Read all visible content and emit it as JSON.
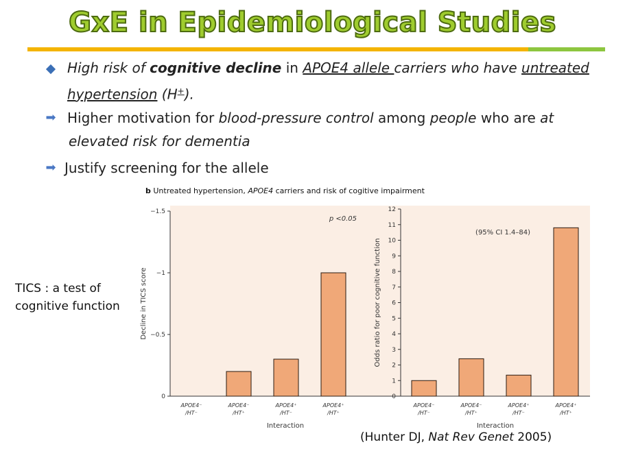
{
  "slide": {
    "title": "GxE in Epidemiological Studies",
    "bullets": [
      {
        "marker": "diamond",
        "runs": [
          {
            "t": "High risk of ",
            "s": "i"
          },
          {
            "t": "cognitive decline",
            "s": "bi"
          },
          {
            "t": " in ",
            "s": ""
          },
          {
            "t": "APOE4 allele ",
            "s": "iu"
          },
          {
            "t": "carriers who have ",
            "s": "i"
          },
          {
            "t": "untreated",
            "s": "iu"
          }
        ],
        "line2": [
          {
            "t": "hypertension",
            "s": "iu"
          },
          {
            "t": " (H",
            "s": "i"
          },
          {
            "t": "+",
            "s": "sup"
          },
          {
            "t": ").",
            "s": "i"
          }
        ]
      },
      {
        "marker": "arrow",
        "runs": [
          {
            "t": "Higher motivation for ",
            "s": ""
          },
          {
            "t": "blood-pressure control",
            "s": "i"
          },
          {
            "t": " among ",
            "s": ""
          },
          {
            "t": "people",
            "s": "i"
          },
          {
            "t": " who are ",
            "s": ""
          },
          {
            "t": "at",
            "s": "i"
          }
        ],
        "line2": [
          {
            "t": "elevated risk for dementia",
            "s": "i"
          }
        ]
      },
      {
        "marker": "arrow",
        "runs": [
          {
            "t": "Justify screening for the allele",
            "s": ""
          }
        ],
        "line2": []
      }
    ],
    "panel_label": "b",
    "panel_title_a": " Untreated hypertension, ",
    "panel_title_b": "APOE4",
    "panel_title_c": " carriers and risk of cogitive impairment",
    "side_note_1": "TICS : a test of",
    "side_note_2": "cognitive function",
    "citation_a": "(Hunter DJ,  ",
    "citation_b": "Nat Rev Genet",
    "citation_c": " 2005)",
    "arrow_glyph": "➡"
  },
  "colors": {
    "bar_fill": "#f0a878",
    "bar_stroke": "#2a1a10",
    "panel_bg": "#fbeee4",
    "title_green": "#9fcc2e"
  },
  "chart_data": [
    {
      "type": "bar",
      "categories": [
        [
          "APOE4⁻",
          "/HT⁻"
        ],
        [
          "APOE4⁻",
          "/HT⁺"
        ],
        [
          "APOE4⁺",
          "/HT⁻"
        ],
        [
          "APOE4⁺",
          "/HT⁺"
        ]
      ],
      "values": [
        0,
        -0.2,
        -0.3,
        -1.0
      ],
      "ylim": [
        0,
        -1.5
      ],
      "yticks": [
        0,
        -0.5,
        -1,
        -1.5
      ],
      "ytick_labels": [
        "0",
        "−0.5",
        "−1",
        "−1.5"
      ],
      "xlabel": "Interaction",
      "ylabel": "Decline in TICS score",
      "annotation": "p <0.05",
      "grid": false
    },
    {
      "type": "bar",
      "categories": [
        [
          "APOE4⁻",
          "/HT⁻"
        ],
        [
          "APOE4⁻",
          "/HT⁺"
        ],
        [
          "APOE4⁺",
          "/HT⁻"
        ],
        [
          "APOE4⁺",
          "/HT⁺"
        ]
      ],
      "values": [
        1.0,
        2.4,
        1.35,
        10.8
      ],
      "ylim": [
        0,
        12
      ],
      "yticks": [
        0,
        1,
        2,
        3,
        4,
        5,
        6,
        7,
        8,
        9,
        10,
        11,
        12
      ],
      "ytick_labels": [
        "0",
        "1",
        "2",
        "3",
        "4",
        "5",
        "6",
        "7",
        "8",
        "9",
        "10",
        "11",
        "12"
      ],
      "xlabel": "Interaction",
      "ylabel": "Odds ratio for poor cognitive function",
      "annotation": "(95% CI 1.4–84)",
      "grid": false
    }
  ]
}
